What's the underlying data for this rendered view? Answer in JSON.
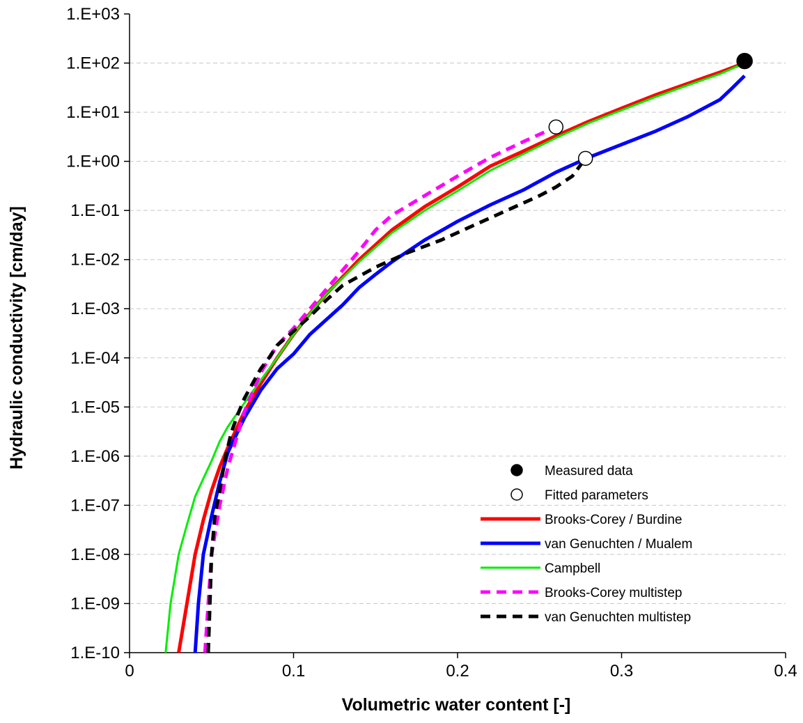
{
  "chart_data": {
    "type": "line",
    "title": "",
    "xlabel": "Volumetric water content [-]",
    "ylabel": "Hydraulic conductivity [cm/day]",
    "xlim": [
      0,
      0.4
    ],
    "ylim": [
      1e-10,
      1000
    ],
    "y_scale": "log",
    "x_ticks": [
      0,
      0.1,
      0.2,
      0.3,
      0.4
    ],
    "x_tick_labels": [
      "0",
      "0.1",
      "0.2",
      "0.3",
      "0.4"
    ],
    "y_ticks": [
      1e-10,
      1e-09,
      1e-08,
      1e-07,
      1e-06,
      1e-05,
      0.0001,
      0.001,
      0.01,
      0.1,
      1,
      10,
      100,
      1000
    ],
    "y_tick_labels": [
      "1.E-10",
      "1.E-09",
      "1.E-08",
      "1.E-07",
      "1.E-06",
      "1.E-05",
      "1.E-04",
      "1.E-03",
      "1.E-02",
      "1.E-01",
      "1.E+00",
      "1.E+01",
      "1.E+02",
      "1.E+03"
    ],
    "grid": "horizontal-dashed",
    "legend_position": "bottom-right",
    "series": [
      {
        "name": "Measured data",
        "style": "marker-filled",
        "color": "#000000",
        "x": [
          0.375
        ],
        "y": [
          110
        ]
      },
      {
        "name": "Fitted parameters",
        "style": "marker-open",
        "color": "#000000",
        "x": [
          0.26,
          0.278
        ],
        "y": [
          5,
          1.15
        ]
      },
      {
        "name": "Brooks-Corey / Burdine",
        "style": "solid",
        "width": 5,
        "color": "#ff0000",
        "x": [
          0.03,
          0.035,
          0.04,
          0.045,
          0.05,
          0.055,
          0.06,
          0.07,
          0.08,
          0.09,
          0.1,
          0.11,
          0.12,
          0.14,
          0.16,
          0.18,
          0.2,
          0.22,
          0.24,
          0.26,
          0.28,
          0.3,
          0.32,
          0.34,
          0.36,
          0.375
        ],
        "y": [
          1e-10,
          1e-09,
          1e-08,
          5e-08,
          2e-07,
          6e-07,
          1.5e-06,
          8e-06,
          3e-05,
          0.0001,
          0.0003,
          0.0008,
          0.002,
          0.01,
          0.04,
          0.12,
          0.3,
          0.8,
          1.6,
          3.3,
          6.5,
          12,
          22,
          38,
          65,
          100
        ]
      },
      {
        "name": "van Genuchten / Mualem",
        "style": "solid",
        "width": 5,
        "color": "#0000ff",
        "x": [
          0.04,
          0.042,
          0.045,
          0.05,
          0.055,
          0.06,
          0.07,
          0.08,
          0.09,
          0.1,
          0.11,
          0.12,
          0.13,
          0.14,
          0.15,
          0.16,
          0.18,
          0.2,
          0.22,
          0.24,
          0.26,
          0.28,
          0.3,
          0.32,
          0.34,
          0.36,
          0.367,
          0.375
        ],
        "y": [
          1e-10,
          1e-09,
          1e-08,
          6e-08,
          3e-07,
          1.2e-06,
          6e-06,
          2.2e-05,
          6e-05,
          0.00012,
          0.0003,
          0.0006,
          0.0012,
          0.0027,
          0.005,
          0.009,
          0.025,
          0.06,
          0.13,
          0.26,
          0.6,
          1.2,
          2.2,
          4,
          8,
          18,
          30,
          55
        ]
      },
      {
        "name": "Campbell",
        "style": "solid",
        "width": 3,
        "color": "#00ee00",
        "x": [
          0.022,
          0.025,
          0.03,
          0.035,
          0.04,
          0.045,
          0.05,
          0.055,
          0.06,
          0.07,
          0.08,
          0.09,
          0.1,
          0.11,
          0.12,
          0.14,
          0.16,
          0.18,
          0.2,
          0.22,
          0.24,
          0.26,
          0.28,
          0.3,
          0.32,
          0.34,
          0.36,
          0.375
        ],
        "y": [
          1e-10,
          1e-09,
          1e-08,
          4e-08,
          1.5e-07,
          3.5e-07,
          8e-07,
          2e-06,
          4e-06,
          1.2e-05,
          3.5e-05,
          0.0001,
          0.0003,
          0.0008,
          0.002,
          0.009,
          0.035,
          0.1,
          0.25,
          0.65,
          1.4,
          3,
          6,
          11,
          20,
          35,
          60,
          100
        ]
      },
      {
        "name": "Brooks-Corey multistep",
        "style": "dashed",
        "width": 5,
        "color": "#ff00ff",
        "x": [
          0.046,
          0.048,
          0.05,
          0.055,
          0.06,
          0.07,
          0.08,
          0.09,
          0.1,
          0.12,
          0.14,
          0.15,
          0.16,
          0.18,
          0.2,
          0.22,
          0.24,
          0.26
        ],
        "y": [
          1e-10,
          1e-09,
          1e-08,
          1e-07,
          6e-07,
          8e-06,
          5e-05,
          0.00018,
          0.0004,
          0.0025,
          0.015,
          0.04,
          0.08,
          0.2,
          0.5,
          1.2,
          2.5,
          5
        ]
      },
      {
        "name": "van Genuchten multistep",
        "style": "dashed",
        "width": 5,
        "color": "#000000",
        "x": [
          0.048,
          0.049,
          0.05,
          0.052,
          0.055,
          0.058,
          0.062,
          0.066,
          0.07,
          0.075,
          0.08,
          0.085,
          0.09,
          0.1,
          0.11,
          0.12,
          0.13,
          0.15,
          0.17,
          0.19,
          0.21,
          0.23,
          0.25,
          0.26,
          0.27,
          0.278
        ],
        "y": [
          1e-10,
          1e-09,
          1e-08,
          6e-08,
          2e-07,
          8e-07,
          3e-06,
          7e-06,
          1.5e-05,
          3e-05,
          6e-05,
          0.0001,
          0.00018,
          0.00035,
          0.0007,
          0.0015,
          0.003,
          0.007,
          0.014,
          0.025,
          0.05,
          0.1,
          0.2,
          0.3,
          0.5,
          1.15
        ]
      }
    ]
  }
}
